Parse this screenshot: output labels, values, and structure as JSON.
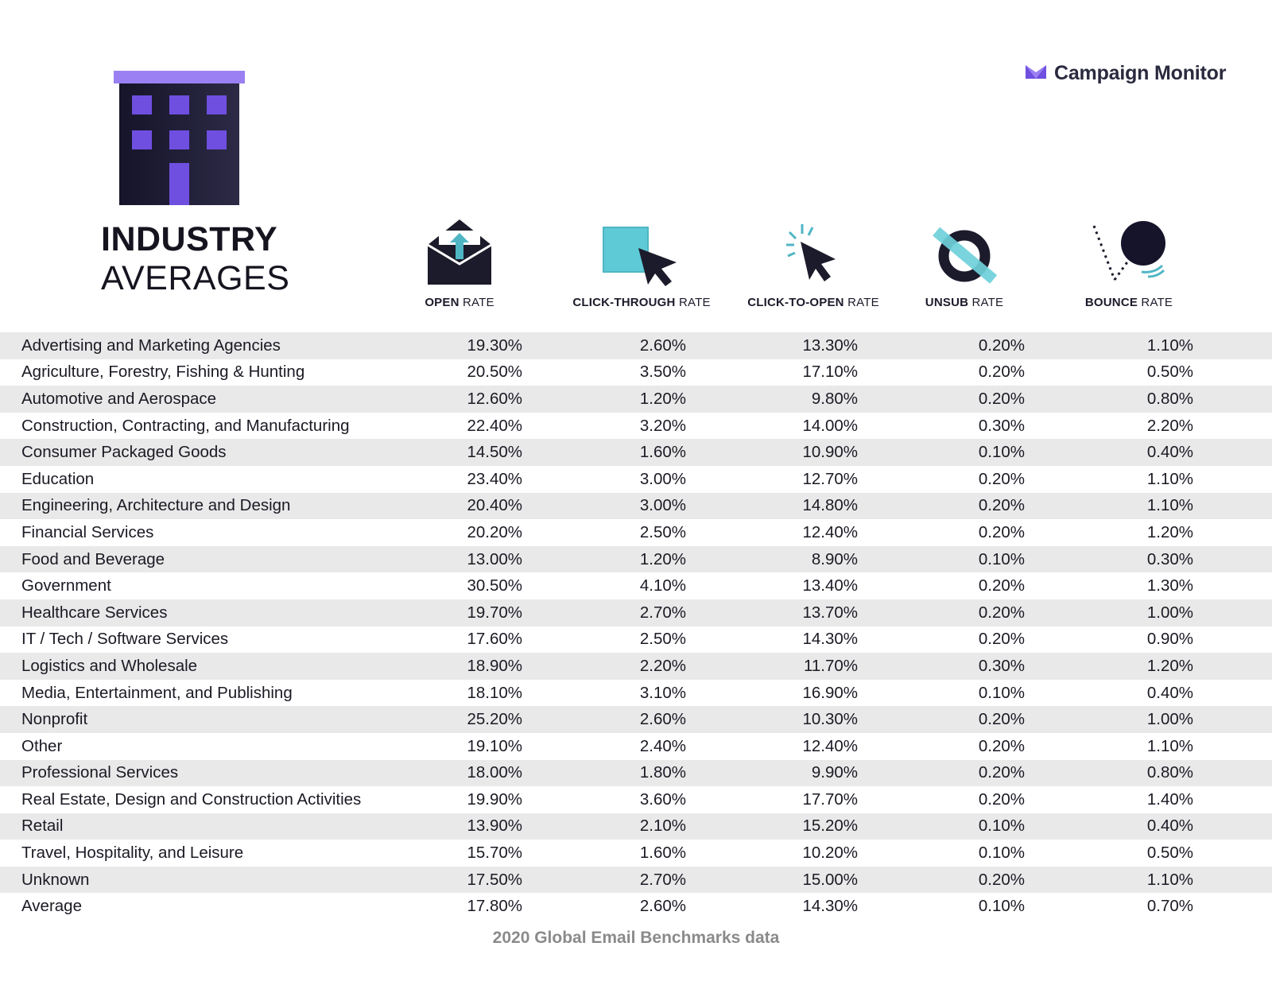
{
  "brand": {
    "name": "Campaign Monitor",
    "logo_icon": "envelope-m-icon",
    "accent_color": "#6e4fe0"
  },
  "title": {
    "line1": "INDUSTRY",
    "line2": "AVERAGES",
    "icon": "building-icon"
  },
  "columns": [
    {
      "bold": "OPEN",
      "rest": " RATE",
      "icon": "open-envelope-icon"
    },
    {
      "bold": "CLICK-THROUGH",
      "rest": " RATE",
      "icon": "cursor-click-box-icon"
    },
    {
      "bold": "CLICK-TO-OPEN",
      "rest": " RATE",
      "icon": "cursor-click-icon"
    },
    {
      "bold": "UNSUB",
      "rest": " RATE",
      "icon": "unsubscribe-ring-icon"
    },
    {
      "bold": "BOUNCE",
      "rest": " RATE",
      "icon": "bounce-ball-icon"
    }
  ],
  "rows": [
    {
      "industry": "Advertising and Marketing Agencies",
      "open": "19.30%",
      "ctr": "2.60%",
      "cto": "13.30%",
      "unsub": "0.20%",
      "bounce": "1.10%"
    },
    {
      "industry": "Agriculture, Forestry, Fishing & Hunting",
      "open": "20.50%",
      "ctr": "3.50%",
      "cto": "17.10%",
      "unsub": "0.20%",
      "bounce": "0.50%"
    },
    {
      "industry": "Automotive and Aerospace",
      "open": "12.60%",
      "ctr": "1.20%",
      "cto": "9.80%",
      "unsub": "0.20%",
      "bounce": "0.80%"
    },
    {
      "industry": "Construction, Contracting, and Manufacturing",
      "open": "22.40%",
      "ctr": "3.20%",
      "cto": "14.00%",
      "unsub": "0.30%",
      "bounce": "2.20%"
    },
    {
      "industry": "Consumer Packaged Goods",
      "open": "14.50%",
      "ctr": "1.60%",
      "cto": "10.90%",
      "unsub": "0.10%",
      "bounce": "0.40%"
    },
    {
      "industry": "Education",
      "open": "23.40%",
      "ctr": "3.00%",
      "cto": "12.70%",
      "unsub": "0.20%",
      "bounce": "1.10%"
    },
    {
      "industry": "Engineering, Architecture and Design",
      "open": "20.40%",
      "ctr": "3.00%",
      "cto": "14.80%",
      "unsub": "0.20%",
      "bounce": "1.10%"
    },
    {
      "industry": "Financial Services",
      "open": "20.20%",
      "ctr": "2.50%",
      "cto": "12.40%",
      "unsub": "0.20%",
      "bounce": "1.20%"
    },
    {
      "industry": "Food and Beverage",
      "open": "13.00%",
      "ctr": "1.20%",
      "cto": "8.90%",
      "unsub": "0.10%",
      "bounce": "0.30%"
    },
    {
      "industry": "Government",
      "open": "30.50%",
      "ctr": "4.10%",
      "cto": "13.40%",
      "unsub": "0.20%",
      "bounce": "1.30%"
    },
    {
      "industry": "Healthcare Services",
      "open": "19.70%",
      "ctr": "2.70%",
      "cto": "13.70%",
      "unsub": "0.20%",
      "bounce": "1.00%"
    },
    {
      "industry": "IT / Tech / Software Services",
      "open": "17.60%",
      "ctr": "2.50%",
      "cto": "14.30%",
      "unsub": "0.20%",
      "bounce": "0.90%"
    },
    {
      "industry": "Logistics and Wholesale",
      "open": "18.90%",
      "ctr": "2.20%",
      "cto": "11.70%",
      "unsub": "0.30%",
      "bounce": "1.20%"
    },
    {
      "industry": "Media, Entertainment, and Publishing",
      "open": "18.10%",
      "ctr": "3.10%",
      "cto": "16.90%",
      "unsub": "0.10%",
      "bounce": "0.40%"
    },
    {
      "industry": "Nonprofit",
      "open": "25.20%",
      "ctr": "2.60%",
      "cto": "10.30%",
      "unsub": "0.20%",
      "bounce": "1.00%"
    },
    {
      "industry": "Other",
      "open": "19.10%",
      "ctr": "2.40%",
      "cto": "12.40%",
      "unsub": "0.20%",
      "bounce": "1.10%"
    },
    {
      "industry": "Professional Services",
      "open": "18.00%",
      "ctr": "1.80%",
      "cto": "9.90%",
      "unsub": "0.20%",
      "bounce": "0.80%"
    },
    {
      "industry": "Real Estate, Design and Construction Activities",
      "open": "19.90%",
      "ctr": "3.60%",
      "cto": "17.70%",
      "unsub": "0.20%",
      "bounce": "1.40%"
    },
    {
      "industry": "Retail",
      "open": "13.90%",
      "ctr": "2.10%",
      "cto": "15.20%",
      "unsub": "0.10%",
      "bounce": "0.40%"
    },
    {
      "industry": "Travel, Hospitality, and Leisure",
      "open": "15.70%",
      "ctr": "1.60%",
      "cto": "10.20%",
      "unsub": "0.10%",
      "bounce": "0.50%"
    },
    {
      "industry": "Unknown",
      "open": "17.50%",
      "ctr": "2.70%",
      "cto": "15.00%",
      "unsub": "0.20%",
      "bounce": "1.10%"
    },
    {
      "industry": "Average",
      "open": "17.80%",
      "ctr": "2.60%",
      "cto": "14.30%",
      "unsub": "0.10%",
      "bounce": "0.70%"
    }
  ],
  "footer": "2020 Global Email Benchmarks data"
}
